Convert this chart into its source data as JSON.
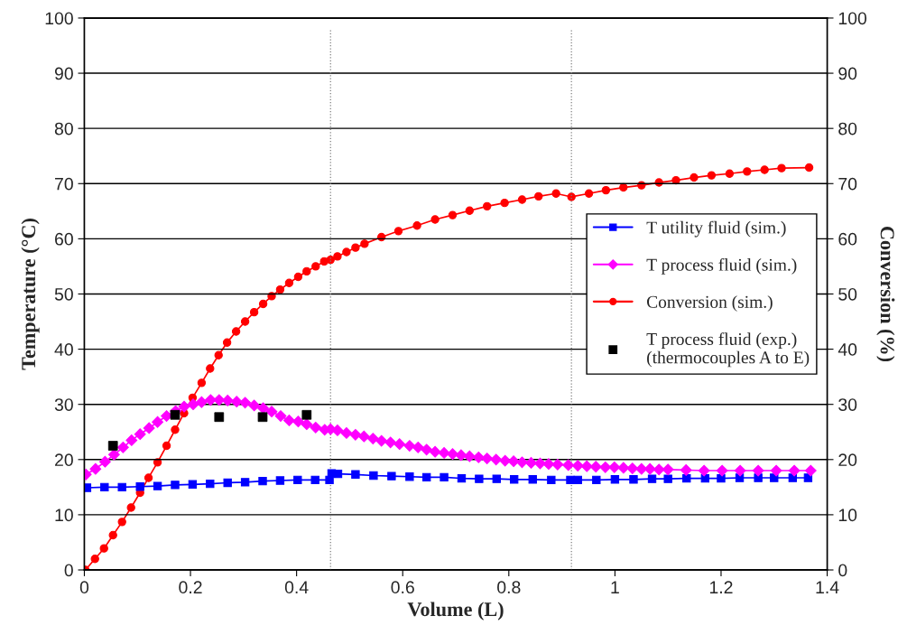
{
  "chart_data": {
    "type": "line",
    "xlabel": "Volume (L)",
    "ylabel": "Temperature (°C)",
    "y2label": "Conversion (%)",
    "xlim": [
      0,
      1.4
    ],
    "xticks": [
      0,
      0.2,
      0.4,
      0.6,
      0.8,
      1,
      1.2,
      1.4
    ],
    "ylim": [
      0,
      100
    ],
    "yticks": [
      0,
      10,
      20,
      30,
      40,
      50,
      60,
      70,
      80,
      90,
      100
    ],
    "y2lim": [
      0,
      100
    ],
    "y2ticks": [
      0,
      10,
      20,
      30,
      40,
      50,
      60,
      70,
      80,
      90,
      100
    ],
    "grid": "y",
    "legend": "right",
    "line_style": "solid",
    "ref_lines": [
      {
        "axis": "x",
        "value": 0.464,
        "color": "#808080",
        "line_style": "dotted"
      },
      {
        "axis": "x",
        "value": 0.918,
        "color": "#808080",
        "line_style": "dotted"
      }
    ],
    "series": [
      {
        "name": "T utility fluid (sim.)",
        "color": "#0000ff",
        "marker": "square",
        "x": [
          0.005,
          0.038,
          0.071,
          0.105,
          0.138,
          0.171,
          0.204,
          0.237,
          0.27,
          0.303,
          0.336,
          0.369,
          0.402,
          0.435,
          0.462,
          0.466,
          0.478,
          0.511,
          0.545,
          0.579,
          0.613,
          0.645,
          0.678,
          0.711,
          0.744,
          0.777,
          0.81,
          0.845,
          0.88,
          0.916,
          0.93,
          0.965,
          1.0,
          1.035,
          1.07,
          1.1,
          1.135,
          1.17,
          1.2,
          1.235,
          1.27,
          1.3,
          1.335,
          1.364
        ],
        "values": [
          14.9,
          15.0,
          15.0,
          15.1,
          15.2,
          15.4,
          15.5,
          15.6,
          15.8,
          15.9,
          16.1,
          16.2,
          16.3,
          16.3,
          16.3,
          17.5,
          17.4,
          17.3,
          17.1,
          17.0,
          16.9,
          16.8,
          16.8,
          16.6,
          16.5,
          16.5,
          16.4,
          16.4,
          16.3,
          16.3,
          16.3,
          16.3,
          16.4,
          16.4,
          16.5,
          16.5,
          16.6,
          16.6,
          16.6,
          16.7,
          16.7,
          16.7,
          16.7,
          16.7
        ]
      },
      {
        "name": "T process fluid (sim.)",
        "color": "#ff00ff",
        "marker": "diamond",
        "x": [
          0.003,
          0.021,
          0.039,
          0.056,
          0.073,
          0.089,
          0.105,
          0.122,
          0.138,
          0.155,
          0.172,
          0.188,
          0.205,
          0.221,
          0.238,
          0.254,
          0.27,
          0.287,
          0.303,
          0.32,
          0.337,
          0.353,
          0.37,
          0.386,
          0.403,
          0.419,
          0.436,
          0.453,
          0.464,
          0.477,
          0.494,
          0.511,
          0.527,
          0.544,
          0.56,
          0.577,
          0.594,
          0.613,
          0.629,
          0.645,
          0.661,
          0.678,
          0.694,
          0.71,
          0.726,
          0.743,
          0.759,
          0.776,
          0.793,
          0.809,
          0.825,
          0.842,
          0.859,
          0.875,
          0.892,
          0.912,
          0.93,
          0.947,
          0.964,
          0.982,
          0.999,
          1.016,
          1.033,
          1.05,
          1.066,
          1.083,
          1.1,
          1.134,
          1.168,
          1.202,
          1.236,
          1.27,
          1.304,
          1.338,
          1.369
        ],
        "values": [
          17.3,
          18.3,
          19.6,
          20.9,
          22.2,
          23.5,
          24.6,
          25.7,
          26.8,
          27.9,
          28.8,
          29.6,
          30.0,
          30.4,
          30.8,
          30.8,
          30.7,
          30.5,
          30.3,
          29.8,
          29.3,
          28.7,
          27.9,
          27.1,
          26.9,
          26.4,
          25.8,
          25.4,
          25.5,
          25.3,
          24.8,
          24.5,
          24.2,
          23.8,
          23.4,
          23.1,
          22.8,
          22.5,
          22.2,
          21.8,
          21.4,
          21.2,
          21.0,
          20.8,
          20.6,
          20.4,
          20.2,
          20.0,
          19.8,
          19.7,
          19.5,
          19.4,
          19.3,
          19.2,
          19.1,
          19.0,
          18.9,
          18.8,
          18.7,
          18.6,
          18.6,
          18.5,
          18.4,
          18.3,
          18.3,
          18.2,
          18.2,
          18.1,
          18.0,
          18.0,
          18.0,
          18.0,
          18.0,
          18.0,
          18.0
        ]
      },
      {
        "name": "Conversion (sim.)",
        "color": "#ff0000",
        "marker": "circle",
        "axis": "y2",
        "x": [
          0.002,
          0.02,
          0.037,
          0.054,
          0.071,
          0.088,
          0.105,
          0.121,
          0.138,
          0.155,
          0.171,
          0.188,
          0.204,
          0.221,
          0.237,
          0.253,
          0.269,
          0.286,
          0.303,
          0.32,
          0.337,
          0.353,
          0.369,
          0.386,
          0.403,
          0.419,
          0.436,
          0.452,
          0.464,
          0.477,
          0.494,
          0.511,
          0.528,
          0.56,
          0.592,
          0.627,
          0.661,
          0.694,
          0.726,
          0.759,
          0.792,
          0.825,
          0.856,
          0.889,
          0.918,
          0.951,
          0.983,
          1.016,
          1.05,
          1.083,
          1.115,
          1.149,
          1.182,
          1.216,
          1.249,
          1.282,
          1.314,
          1.366
        ],
        "values": [
          0,
          2.0,
          3.9,
          6.3,
          8.7,
          11.3,
          14.0,
          16.7,
          19.5,
          22.5,
          25.4,
          28.4,
          31.2,
          33.9,
          36.5,
          38.9,
          41.2,
          43.2,
          45.0,
          46.7,
          48.2,
          49.6,
          50.8,
          52.0,
          53.1,
          54.1,
          55.0,
          55.9,
          56.2,
          56.8,
          57.6,
          58.4,
          59.1,
          60.3,
          61.4,
          62.4,
          63.5,
          64.3,
          65.1,
          65.9,
          66.5,
          67.1,
          67.7,
          68.2,
          67.6,
          68.2,
          68.8,
          69.3,
          69.7,
          70.2,
          70.6,
          71.1,
          71.5,
          71.8,
          72.2,
          72.5,
          72.8,
          72.9
        ]
      },
      {
        "name": "T process fluid (exp.)\n(thermocouples A to E)",
        "type": "scatter",
        "color": "#000000",
        "marker": "square",
        "x": [
          0.054,
          0.171,
          0.254,
          0.336,
          0.419
        ],
        "values": [
          22.5,
          28.1,
          27.7,
          27.7,
          28.1
        ]
      }
    ]
  }
}
